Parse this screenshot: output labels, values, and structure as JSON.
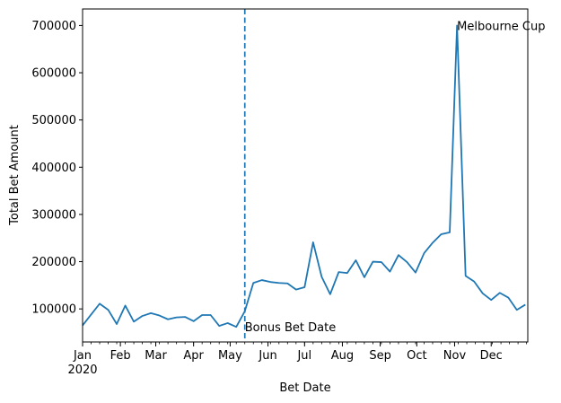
{
  "chart_data": {
    "type": "line",
    "xlabel": "Bet Date",
    "ylabel": "Total Bet Amount",
    "x_start": "2020-01-01",
    "x_end": "2020-12-31",
    "ylim": [
      30000,
      735000
    ],
    "yticks": [
      100000,
      200000,
      300000,
      400000,
      500000,
      600000,
      700000
    ],
    "ytick_labels": [
      "100000",
      "200000",
      "300000",
      "400000",
      "500000",
      "600000",
      "700000"
    ],
    "xticks": [
      {
        "date": "2020-01-01",
        "label": "Jan",
        "sublabel": "2020"
      },
      {
        "date": "2020-02-01",
        "label": "Feb"
      },
      {
        "date": "2020-03-01",
        "label": "Mar"
      },
      {
        "date": "2020-04-01",
        "label": "Apr"
      },
      {
        "date": "2020-05-01",
        "label": "May"
      },
      {
        "date": "2020-06-01",
        "label": "Jun"
      },
      {
        "date": "2020-07-01",
        "label": "Jul"
      },
      {
        "date": "2020-08-01",
        "label": "Aug"
      },
      {
        "date": "2020-09-01",
        "label": "Sep"
      },
      {
        "date": "2020-10-01",
        "label": "Oct"
      },
      {
        "date": "2020-11-01",
        "label": "Nov"
      },
      {
        "date": "2020-12-01",
        "label": "Dec"
      }
    ],
    "grid": false,
    "line_color": "#1f77b4",
    "series": [
      {
        "x": [
          "2020-01-01",
          "2020-01-08",
          "2020-01-15",
          "2020-01-22",
          "2020-01-29",
          "2020-02-05",
          "2020-02-12",
          "2020-02-19",
          "2020-02-26",
          "2020-03-04",
          "2020-03-11",
          "2020-03-18",
          "2020-03-25",
          "2020-04-01",
          "2020-04-08",
          "2020-04-15",
          "2020-04-22",
          "2020-04-29",
          "2020-05-06",
          "2020-05-13",
          "2020-05-20",
          "2020-05-27",
          "2020-06-03",
          "2020-06-10",
          "2020-06-17",
          "2020-06-24",
          "2020-07-01",
          "2020-07-08",
          "2020-07-15",
          "2020-07-22",
          "2020-07-29",
          "2020-08-05",
          "2020-08-12",
          "2020-08-19",
          "2020-08-26",
          "2020-09-02",
          "2020-09-09",
          "2020-09-16",
          "2020-09-23",
          "2020-09-30",
          "2020-10-07",
          "2020-10-14",
          "2020-10-21",
          "2020-10-28",
          "2020-11-03",
          "2020-11-10",
          "2020-11-17",
          "2020-11-24",
          "2020-12-01",
          "2020-12-08",
          "2020-12-15",
          "2020-12-22",
          "2020-12-29"
        ],
        "values": [
          65000,
          88000,
          111000,
          98000,
          68000,
          107000,
          73000,
          85000,
          91000,
          86000,
          78000,
          82000,
          83000,
          74000,
          87000,
          87000,
          64000,
          70000,
          62000,
          95000,
          155000,
          161000,
          157000,
          155000,
          154000,
          141000,
          146000,
          241000,
          168000,
          131000,
          178000,
          176000,
          203000,
          167000,
          200000,
          199000,
          179000,
          214000,
          199000,
          177000,
          218000,
          240000,
          258000,
          262000,
          700000,
          170000,
          158000,
          133000,
          119000,
          134000,
          124000,
          98000,
          109000
        ]
      }
    ],
    "vline": {
      "date": "2020-05-13",
      "style": "dashed",
      "color": "#1f77b4"
    },
    "annotations": [
      {
        "text": "Bonus Bet Date",
        "date": "2020-05-13",
        "value": 62000
      },
      {
        "text": "Melbourne Cup",
        "date": "2020-11-03",
        "value": 700000
      }
    ]
  }
}
